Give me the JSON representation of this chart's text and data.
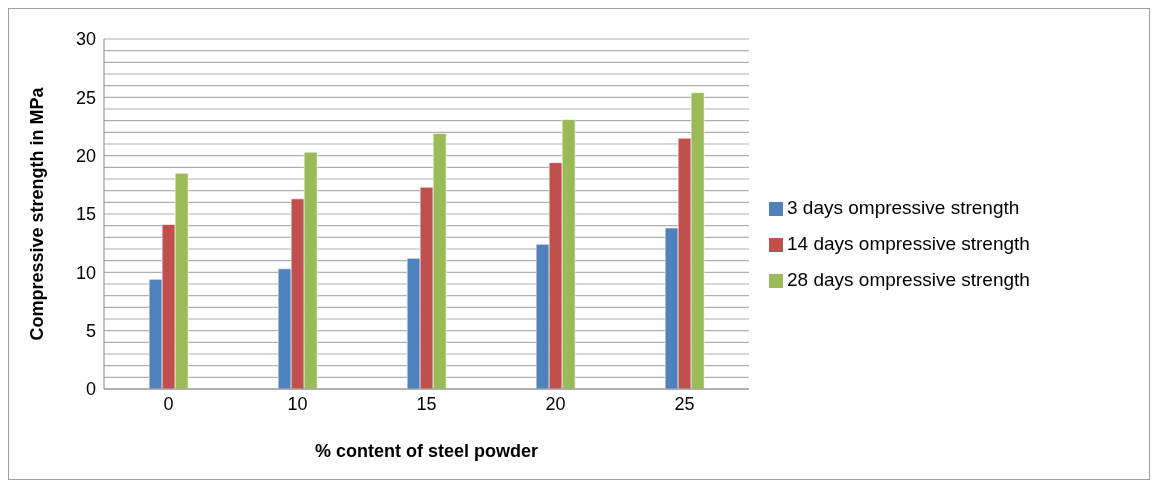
{
  "chart_data": {
    "type": "bar",
    "xlabel": "% content of steel powder",
    "ylabel": "Compressive strength in MPa",
    "categories": [
      "0",
      "10",
      "15",
      "20",
      "25"
    ],
    "series": [
      {
        "name": "3 days ompressive strength",
        "color": "#4f81bd",
        "values": [
          9.4,
          10.3,
          11.2,
          12.4,
          13.8
        ]
      },
      {
        "name": "14 days ompressive strength",
        "color": "#c0504d",
        "values": [
          14.1,
          16.3,
          17.3,
          19.4,
          21.5
        ]
      },
      {
        "name": "28 days ompressive strength",
        "color": "#9bbb59",
        "values": [
          18.5,
          20.3,
          21.9,
          23.1,
          25.4
        ]
      }
    ],
    "ylim": [
      0,
      30
    ],
    "yticks": [
      0,
      {
        "value": 1,
        "label": null
      },
      {
        "value": 2,
        "label": null
      },
      {
        "value": 3,
        "label": null
      },
      {
        "value": 4,
        "label": null
      },
      5,
      {
        "value": 6,
        "label": null
      },
      {
        "value": 7,
        "label": null
      },
      {
        "value": 8,
        "label": null
      },
      {
        "value": 9,
        "label": null
      },
      10,
      {
        "value": 11,
        "label": null
      },
      {
        "value": 12,
        "label": null
      },
      {
        "value": 13,
        "label": null
      },
      {
        "value": 14,
        "label": null
      },
      15,
      {
        "value": 16,
        "label": null
      },
      {
        "value": 17,
        "label": null
      },
      {
        "value": 18,
        "label": null
      },
      {
        "value": 19,
        "label": null
      },
      20,
      {
        "value": 21,
        "label": null
      },
      {
        "value": 22,
        "label": null
      },
      {
        "value": 23,
        "label": null
      },
      {
        "value": 24,
        "label": null
      },
      25,
      {
        "value": 26,
        "label": null
      },
      {
        "value": 27,
        "label": null
      },
      {
        "value": 28,
        "label": null
      },
      {
        "value": 29,
        "label": null
      },
      30
    ],
    "grid": "y",
    "legend": "right"
  }
}
